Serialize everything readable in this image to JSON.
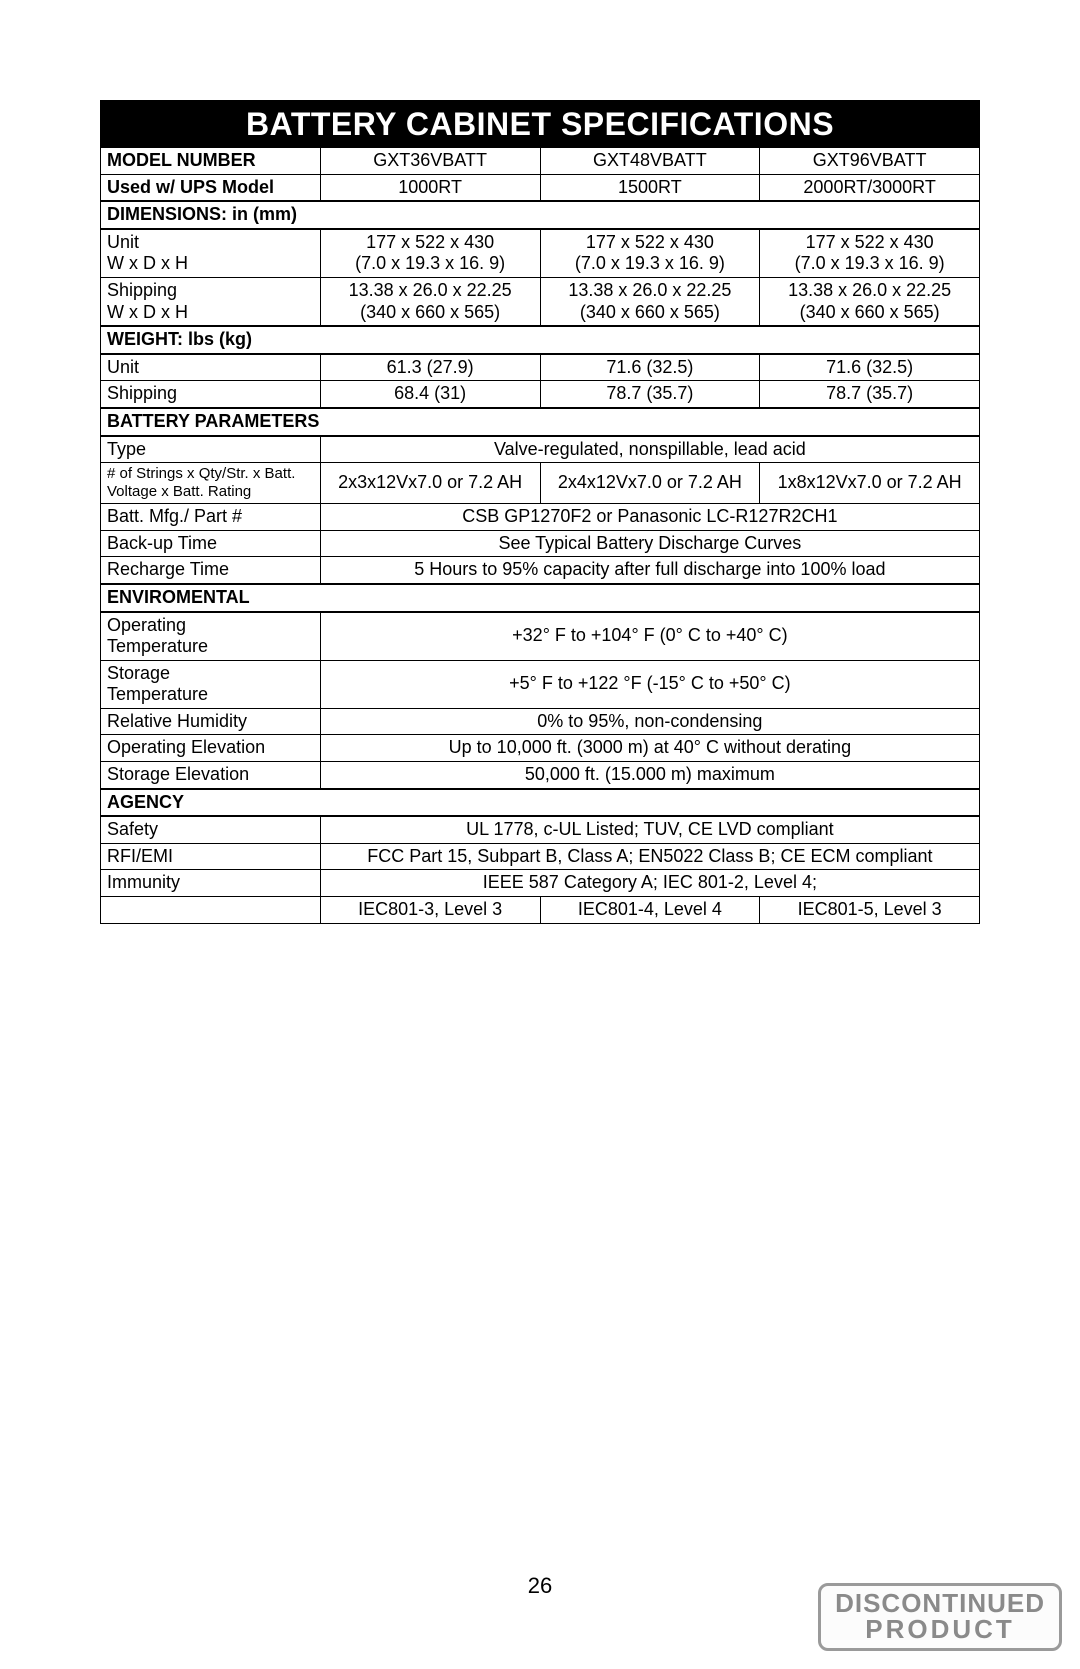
{
  "title": "BATTERY CABINET SPECIFICATIONS",
  "pageNumber": "26",
  "stamp": {
    "line1": "DISCONTINUED",
    "line2": "PRODUCT"
  },
  "headers": {
    "modelNumber": "MODEL NUMBER",
    "usedWith": "Used w/ UPS Model",
    "dimensions": "DIMENSIONS: in (mm)",
    "weight": "WEIGHT: lbs (kg)",
    "battery": "BATTERY PARAMETERS",
    "enviro": "ENVIROMENTAL",
    "agency": "AGENCY"
  },
  "models": {
    "a": "GXT36VBATT",
    "b": "GXT48VBATT",
    "c": "GXT96VBATT"
  },
  "usedWith": {
    "a": "1000RT",
    "b": "1500RT",
    "c": "2000RT/3000RT"
  },
  "dim": {
    "unitLabel": "Unit\nW x D x H",
    "unit": {
      "a1": "177 x 522 x 430",
      "a2": "(7.0 x 19.3 x 16. 9)",
      "b1": "177 x 522 x 430",
      "b2": "(7.0 x 19.3 x 16. 9)",
      "c1": "177 x 522 x 430",
      "c2": "(7.0 x 19.3 x 16. 9)"
    },
    "shipLabel": "Shipping\nW x D x H",
    "ship": {
      "a1": "13.38 x 26.0 x 22.25",
      "a2": "(340 x 660 x 565)",
      "b1": "13.38 x 26.0 x 22.25",
      "b2": "(340 x 660 x 565)",
      "c1": "13.38 x 26.0 x 22.25",
      "c2": "(340 x 660 x 565)"
    }
  },
  "weight": {
    "unitLabel": "Unit",
    "unit": {
      "a": "61.3 (27.9)",
      "b": "71.6 (32.5)",
      "c": "71.6 (32.5)"
    },
    "shipLabel": "Shipping",
    "ship": {
      "a": "68.4 (31)",
      "b": "78.7 (35.7)",
      "c": "78.7 (35.7)"
    }
  },
  "batt": {
    "typeLabel": "Type",
    "type": "Valve-regulated, nonspillable, lead acid",
    "stringsLabel": "# of Strings x Qty/Str. x Batt. Voltage x Batt. Rating",
    "strings": {
      "a": "2x3x12Vx7.0 or 7.2 AH",
      "b": "2x4x12Vx7.0 or 7.2 AH",
      "c": "1x8x12Vx7.0 or 7.2 AH"
    },
    "mfgLabel": "Batt. Mfg./ Part #",
    "mfg": "CSB GP1270F2 or Panasonic LC-R127R2CH1",
    "backupLabel": "Back-up Time",
    "backup": "See Typical Battery Discharge Curves",
    "rechargeLabel": "Recharge Time",
    "recharge": "5 Hours to 95% capacity after full discharge into 100% load"
  },
  "env": {
    "opTempLabel": "Operating Temperature",
    "opTemp": "+32° F to +104° F (0° C to +40° C)",
    "storTempLabel": "Storage Temperature",
    "storTemp": "+5° F to +122 °F (-15° C to +50° C)",
    "rhLabel": "Relative Humidity",
    "rh": "0% to 95%, non-condensing",
    "opElevLabel": "Operating Elevation",
    "opElev": "Up to 10,000 ft. (3000 m) at 40° C without derating",
    "storElevLabel": "Storage Elevation",
    "storElev": "50,000 ft. (15.000 m) maximum"
  },
  "agency": {
    "safetyLabel": "Safety",
    "safety": "UL 1778, c-UL Listed; TUV, CE LVD compliant",
    "rfiLabel": "RFI/EMI",
    "rfi": "FCC Part 15, Subpart B, Class A; EN5022 Class B; CE ECM compliant",
    "immunityLabel": "Immunity",
    "immunity": "IEEE 587 Category A; IEC 801-2, Level 4;",
    "iec": {
      "a": "IEC801-3, Level 3",
      "b": "IEC801-4, Level 4",
      "c": "IEC801-5, Level 3"
    }
  }
}
